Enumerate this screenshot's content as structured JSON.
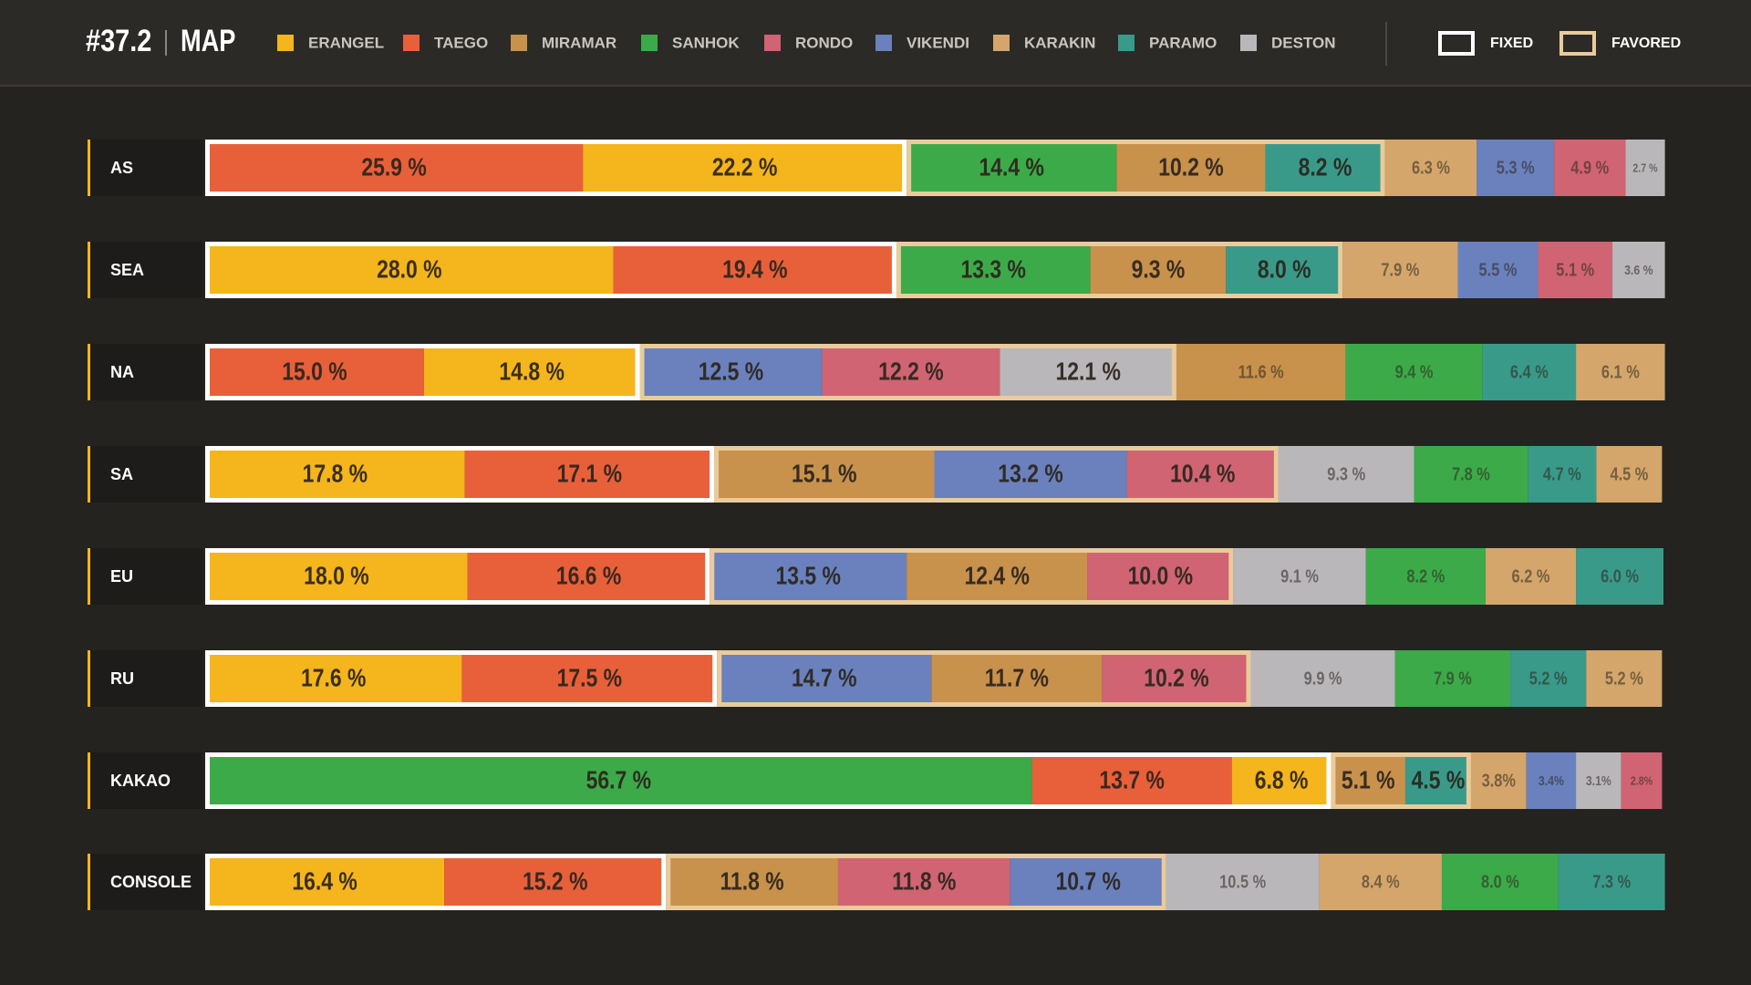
{
  "chart_data": {
    "type": "stacked-bar",
    "title": "#37.2",
    "subtitle": "MAP",
    "legend": [
      {
        "name": "ERANGEL",
        "color": "#f5b51c"
      },
      {
        "name": "TAEGO",
        "color": "#e8603a"
      },
      {
        "name": "MIRAMAR",
        "color": "#c8914c"
      },
      {
        "name": "SANHOK",
        "color": "#3daa49"
      },
      {
        "name": "RONDO",
        "color": "#d06472"
      },
      {
        "name": "VIKENDI",
        "color": "#6a81bd"
      },
      {
        "name": "KARAKIN",
        "color": "#d4a66b"
      },
      {
        "name": "PARAMO",
        "color": "#3a9a89"
      },
      {
        "name": "DESTON",
        "color": "#bab7ba"
      }
    ],
    "groups": [
      {
        "name": "FIXED",
        "color": "#ffffff"
      },
      {
        "name": "FAVORED",
        "color": "#e9cb9c"
      }
    ],
    "xlim": [
      0,
      100
    ],
    "rows": [
      {
        "name": "AS",
        "maps": [
          "TAEGO",
          "ERANGEL",
          "SANHOK",
          "MIRAMAR",
          "PARAMO",
          "KARAKIN",
          "VIKENDI",
          "RONDO",
          "DESTON"
        ],
        "values": [
          25.9,
          22.2,
          14.4,
          10.2,
          8.2,
          6.3,
          5.3,
          4.9,
          2.7
        ],
        "value_labels": [
          "25.9 %",
          "22.2 %",
          "14.4 %",
          "10.2 %",
          "8.2 %",
          "6.3 %",
          "5.3 %",
          "4.9 %",
          "2.7 %"
        ],
        "groups": [
          "FIXED",
          "FIXED",
          "FAVORED",
          "FAVORED",
          "FAVORED",
          null,
          null,
          null,
          null
        ]
      },
      {
        "name": "SEA",
        "maps": [
          "ERANGEL",
          "TAEGO",
          "SANHOK",
          "MIRAMAR",
          "PARAMO",
          "KARAKIN",
          "VIKENDI",
          "RONDO",
          "DESTON"
        ],
        "values": [
          28.0,
          19.4,
          13.3,
          9.3,
          8.0,
          7.9,
          5.5,
          5.1,
          3.6
        ],
        "value_labels": [
          "28.0 %",
          "19.4 %",
          "13.3 %",
          "9.3 %",
          "8.0 %",
          "7.9 %",
          "5.5 %",
          "5.1 %",
          "3.6 %"
        ],
        "groups": [
          "FIXED",
          "FIXED",
          "FAVORED",
          "FAVORED",
          "FAVORED",
          null,
          null,
          null,
          null
        ]
      },
      {
        "name": "NA",
        "maps": [
          "TAEGO",
          "ERANGEL",
          "VIKENDI",
          "RONDO",
          "DESTON",
          "MIRAMAR",
          "SANHOK",
          "PARAMO",
          "KARAKIN"
        ],
        "values": [
          15.0,
          14.8,
          12.5,
          12.2,
          12.1,
          11.6,
          9.4,
          6.4,
          6.1
        ],
        "value_labels": [
          "15.0 %",
          "14.8 %",
          "12.5 %",
          "12.2 %",
          "12.1 %",
          "11.6 %",
          "9.4 %",
          "6.4 %",
          "6.1 %"
        ],
        "groups": [
          "FIXED",
          "FIXED",
          "FAVORED",
          "FAVORED",
          "FAVORED",
          null,
          null,
          null,
          null
        ]
      },
      {
        "name": "SA",
        "maps": [
          "ERANGEL",
          "TAEGO",
          "MIRAMAR",
          "VIKENDI",
          "RONDO",
          "DESTON",
          "SANHOK",
          "PARAMO",
          "KARAKIN"
        ],
        "values": [
          17.8,
          17.1,
          15.1,
          13.2,
          10.4,
          9.3,
          7.8,
          4.7,
          4.5
        ],
        "value_labels": [
          "17.8 %",
          "17.1 %",
          "15.1 %",
          "13.2 %",
          "10.4 %",
          "9.3 %",
          "7.8 %",
          "4.7 %",
          "4.5 %"
        ],
        "groups": [
          "FIXED",
          "FIXED",
          "FAVORED",
          "FAVORED",
          "FAVORED",
          null,
          null,
          null,
          null
        ]
      },
      {
        "name": "EU",
        "maps": [
          "ERANGEL",
          "TAEGO",
          "VIKENDI",
          "MIRAMAR",
          "RONDO",
          "DESTON",
          "SANHOK",
          "KARAKIN",
          "PARAMO"
        ],
        "values": [
          18.0,
          16.6,
          13.5,
          12.4,
          10.0,
          9.1,
          8.2,
          6.2,
          6.0
        ],
        "value_labels": [
          "18.0 %",
          "16.6 %",
          "13.5 %",
          "12.4 %",
          "10.0 %",
          "9.1 %",
          "8.2 %",
          "6.2 %",
          "6.0 %"
        ],
        "groups": [
          "FIXED",
          "FIXED",
          "FAVORED",
          "FAVORED",
          "FAVORED",
          null,
          null,
          null,
          null
        ]
      },
      {
        "name": "RU",
        "maps": [
          "ERANGEL",
          "TAEGO",
          "VIKENDI",
          "MIRAMAR",
          "RONDO",
          "DESTON",
          "SANHOK",
          "PARAMO",
          "KARAKIN"
        ],
        "values": [
          17.6,
          17.5,
          14.7,
          11.7,
          10.2,
          9.9,
          7.9,
          5.2,
          5.2
        ],
        "value_labels": [
          "17.6 %",
          "17.5 %",
          "14.7 %",
          "11.7 %",
          "10.2 %",
          "9.9 %",
          "7.9 %",
          "5.2 %",
          "5.2 %"
        ],
        "groups": [
          "FIXED",
          "FIXED",
          "FAVORED",
          "FAVORED",
          "FAVORED",
          null,
          null,
          null,
          null
        ]
      },
      {
        "name": "KAKAO",
        "maps": [
          "SANHOK",
          "TAEGO",
          "ERANGEL",
          "MIRAMAR",
          "PARAMO",
          "KARAKIN",
          "VIKENDI",
          "DESTON",
          "RONDO"
        ],
        "values": [
          56.7,
          13.7,
          6.8,
          5.1,
          4.5,
          3.8,
          3.4,
          3.1,
          2.8
        ],
        "value_labels": [
          "56.7 %",
          "13.7 %",
          "6.8 %",
          "5.1 %",
          "4.5 %",
          "3.8%",
          "3.4%",
          "3.1%",
          "2.8%"
        ],
        "groups": [
          "FIXED",
          "FIXED",
          "FIXED",
          "FAVORED",
          "FAVORED",
          null,
          null,
          null,
          null
        ]
      },
      {
        "name": "CONSOLE",
        "maps": [
          "ERANGEL",
          "TAEGO",
          "MIRAMAR",
          "RONDO",
          "VIKENDI",
          "DESTON",
          "KARAKIN",
          "SANHOK",
          "PARAMO"
        ],
        "values": [
          16.4,
          15.2,
          11.8,
          11.8,
          10.7,
          10.5,
          8.4,
          8.0,
          7.3
        ],
        "value_labels": [
          "16.4 %",
          "15.2 %",
          "11.8 %",
          "11.8 %",
          "10.7 %",
          "10.5 %",
          "8.4 %",
          "8.0 %",
          "7.3 %"
        ],
        "groups": [
          "FIXED",
          "FIXED",
          "FAVORED",
          "FAVORED",
          "FAVORED",
          null,
          null,
          null,
          null
        ]
      }
    ]
  }
}
